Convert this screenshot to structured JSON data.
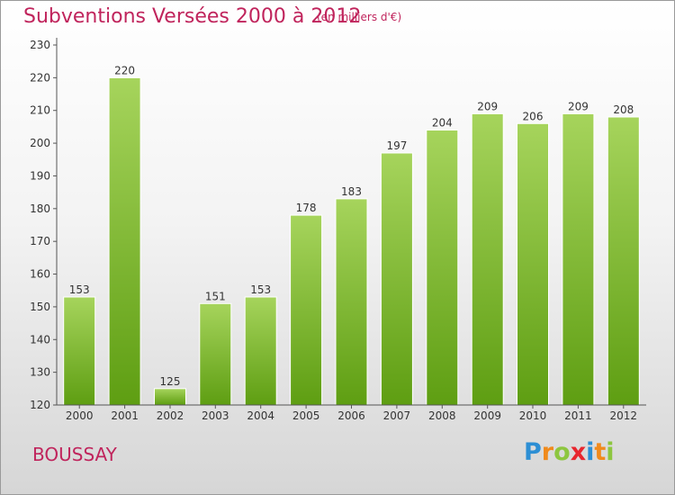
{
  "header": {
    "title": "Subventions Versées 2000 à 2012",
    "unit": "(en milliers d'€)"
  },
  "footer": {
    "place": "BOUSSAY",
    "logo_letters": [
      "P",
      "r",
      "o",
      "x",
      "i",
      "t",
      "i"
    ],
    "logo_colors": [
      "#2d8fd4",
      "#f08a1c",
      "#8dc63f",
      "#e8262e",
      "#2d8fd4",
      "#f08a1c",
      "#8dc63f"
    ]
  },
  "colors": {
    "title": "#c0245c",
    "bar_light": "#a6d45c",
    "bar_dark": "#5e9e12",
    "axis": "#555555",
    "text": "#333333"
  },
  "chart_data": {
    "type": "bar",
    "categories": [
      "2000",
      "2001",
      "2002",
      "2003",
      "2004",
      "2005",
      "2006",
      "2007",
      "2008",
      "2009",
      "2010",
      "2011",
      "2012"
    ],
    "values": [
      153,
      220,
      125,
      151,
      153,
      178,
      183,
      197,
      204,
      209,
      206,
      209,
      208
    ],
    "ylim": [
      120,
      230
    ],
    "yticks": [
      120,
      130,
      140,
      150,
      160,
      170,
      180,
      190,
      200,
      210,
      220,
      230
    ],
    "grid": false,
    "data_labels": true
  }
}
